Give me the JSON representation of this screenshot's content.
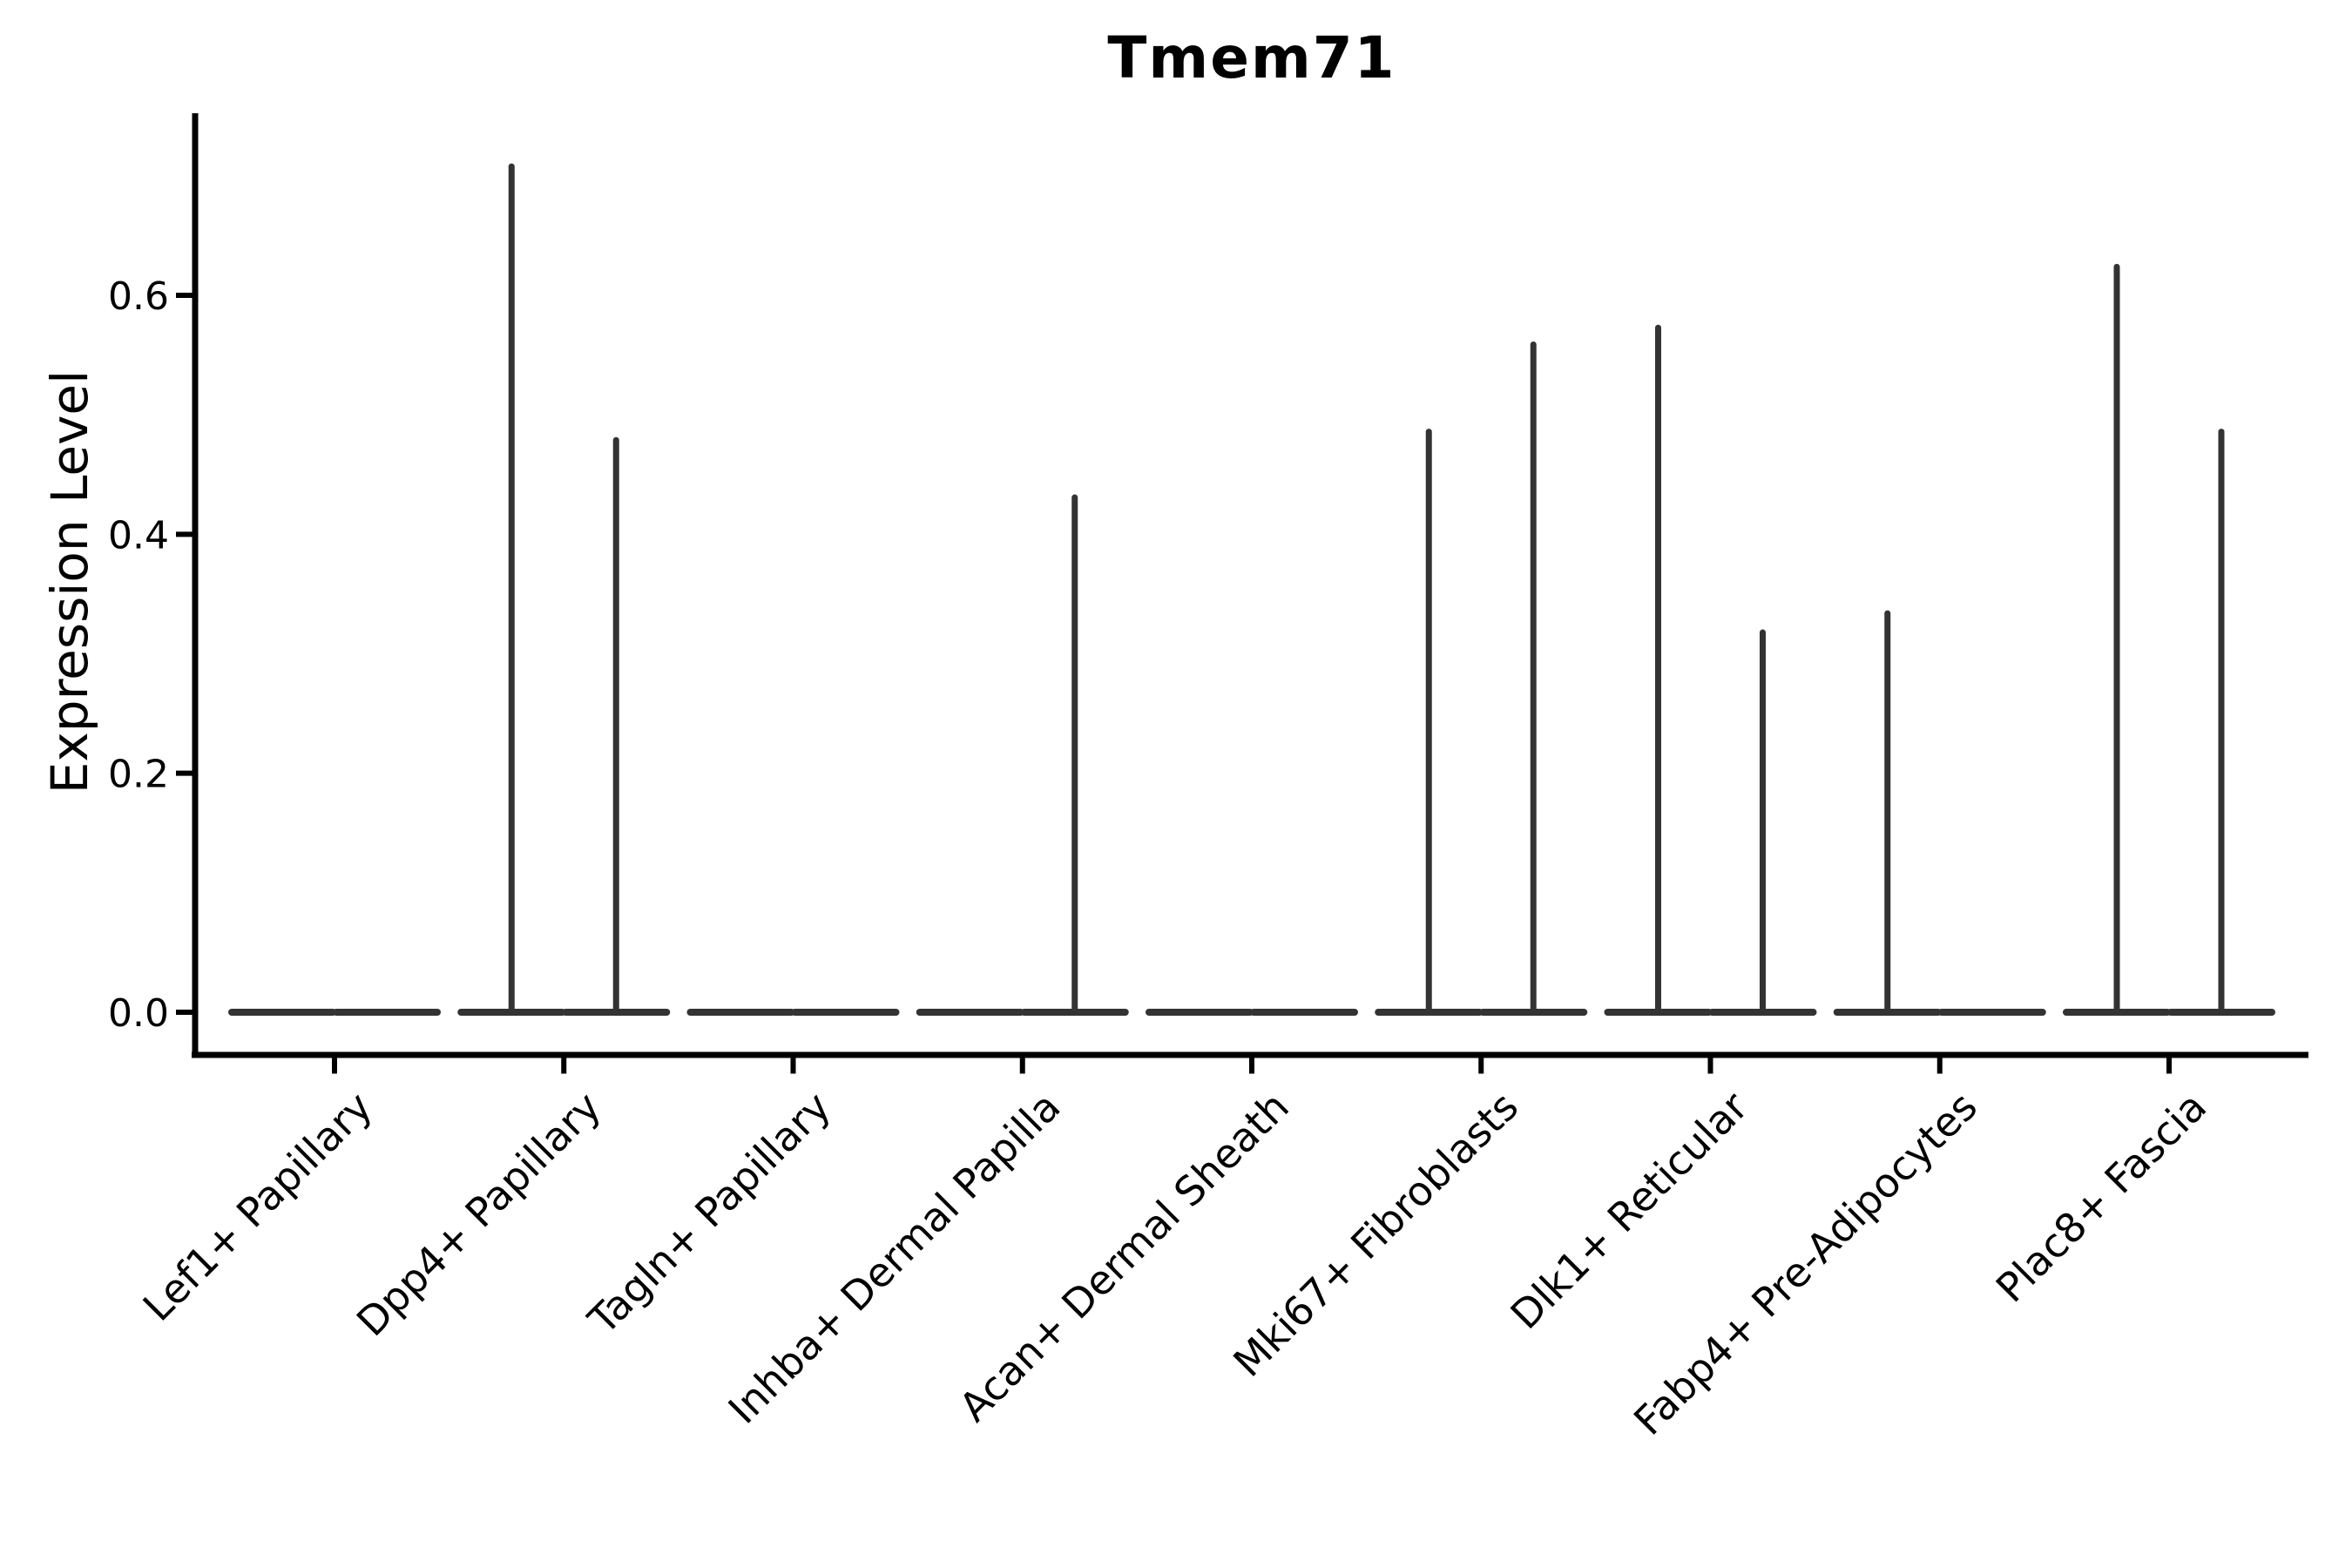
{
  "chart_data": {
    "type": "violin",
    "title": "Tmem71",
    "ylabel": "Expression Level",
    "xlabel": "",
    "ylim": [
      -0.035,
      0.752
    ],
    "yticks": [
      0,
      0.2,
      0.4,
      0.6
    ],
    "ytick_labels": [
      "0.0",
      "0.2",
      "0.4",
      "0.6"
    ],
    "categories": [
      "Lef1+ Papillary",
      "Dpp4+ Papillary",
      "Tagln+ Papillary",
      "Inhba+ Dermal Papilla",
      "Acan+ Dermal Sheath",
      "Mki67+ Fibroblasts",
      "Dlk1+ Reticular",
      "Fabp4+ Pre-Adipocytes",
      "Plac8+ Fascia"
    ],
    "series": [
      {
        "name": "left-violin",
        "max_expression": [
          0,
          0.71,
          0,
          0,
          0,
          0.488,
          0.575,
          0.336,
          0.626
        ]
      },
      {
        "name": "right-violin",
        "max_expression": [
          0,
          0.481,
          0,
          0.433,
          0,
          0.561,
          0.32,
          0,
          0.488
        ]
      }
    ],
    "baseline_value": 0,
    "violins_per_category": 2,
    "grid": false,
    "legend": "none",
    "colors": {
      "violin_stroke": "#333333",
      "axis": "#000000",
      "text": "#000000",
      "background": "#ffffff"
    }
  }
}
